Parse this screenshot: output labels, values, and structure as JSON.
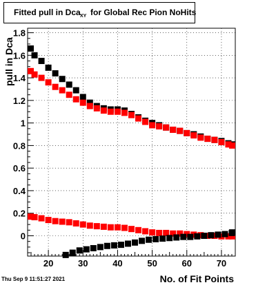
{
  "chart_data": {
    "type": "scatter",
    "title": "Fitted pull in Dca",
    "title_subscript": "XY",
    "title_rest": "for Global Rec Pion NoHits",
    "xlabel": "No. of Fit Points",
    "ylabel": "pull in Dca",
    "xlim": [
      14,
      74
    ],
    "ylim": [
      -0.18,
      1.84
    ],
    "xticks": [
      20,
      30,
      40,
      50,
      60,
      70
    ],
    "yticks": [
      0,
      0.2,
      0.4,
      0.6,
      0.8,
      1,
      1.2,
      1.4,
      1.6,
      1.8
    ],
    "grid": true,
    "series": [
      {
        "color": "#000000",
        "marker": "square",
        "x": [
          14,
          16,
          18,
          20,
          22,
          24,
          26,
          28,
          30,
          32,
          34,
          36,
          38,
          40,
          42,
          44,
          46,
          48,
          50,
          52,
          54,
          56,
          58,
          60,
          62,
          64,
          66,
          68,
          70,
          72,
          74
        ],
        "y": [
          1.66,
          1.6,
          1.55,
          1.49,
          1.44,
          1.39,
          1.34,
          1.29,
          1.23,
          1.18,
          1.15,
          1.13,
          1.12,
          1.12,
          1.11,
          1.08,
          1.05,
          1.02,
          1.0,
          0.98,
          0.96,
          0.94,
          0.93,
          0.91,
          0.9,
          0.88,
          0.86,
          0.85,
          0.84,
          0.82,
          0.81
        ]
      },
      {
        "color": "#ff0000",
        "marker": "square",
        "x": [
          14,
          16,
          18,
          20,
          22,
          24,
          26,
          28,
          30,
          32,
          34,
          36,
          38,
          40,
          42,
          44,
          46,
          48,
          50,
          52,
          54,
          56,
          58,
          60,
          62,
          64,
          66,
          68,
          70,
          72,
          74
        ],
        "y": [
          1.46,
          1.43,
          1.4,
          1.36,
          1.32,
          1.29,
          1.25,
          1.21,
          1.18,
          1.15,
          1.13,
          1.11,
          1.1,
          1.1,
          1.09,
          1.07,
          1.04,
          1.01,
          0.98,
          0.97,
          0.96,
          0.94,
          0.93,
          0.91,
          0.89,
          0.87,
          0.86,
          0.85,
          0.83,
          0.81,
          0.8
        ]
      },
      {
        "color": "#ff0000",
        "marker": "square",
        "x": [
          14,
          16,
          18,
          20,
          22,
          24,
          26,
          28,
          30,
          32,
          34,
          36,
          38,
          40,
          42,
          44,
          46,
          48,
          50,
          52,
          54,
          56,
          58,
          60,
          62,
          64,
          66,
          68,
          70,
          72,
          74
        ],
        "y": [
          0.17,
          0.165,
          0.155,
          0.14,
          0.13,
          0.125,
          0.12,
          0.11,
          0.1,
          0.09,
          0.085,
          0.08,
          0.075,
          0.075,
          0.07,
          0.06,
          0.05,
          0.04,
          0.03,
          0.025,
          0.025,
          0.02,
          0.02,
          0.015,
          0.01,
          0.005,
          0.0,
          0.0,
          -0.005,
          -0.005,
          -0.005
        ]
      },
      {
        "color": "#000000",
        "marker": "square",
        "x": [
          25,
          27,
          29,
          31,
          33,
          35,
          37,
          39,
          41,
          43,
          45,
          47,
          49,
          51,
          53,
          55,
          57,
          59,
          61,
          63,
          65,
          67,
          69,
          71,
          73,
          74
        ],
        "y": [
          -0.17,
          -0.15,
          -0.13,
          -0.12,
          -0.11,
          -0.1,
          -0.09,
          -0.085,
          -0.08,
          -0.07,
          -0.06,
          -0.045,
          -0.035,
          -0.03,
          -0.025,
          -0.02,
          -0.015,
          -0.01,
          -0.01,
          -0.005,
          0.0,
          0.005,
          0.01,
          0.015,
          0.025,
          0.03
        ]
      }
    ]
  },
  "footer": {
    "date": "Thu Sep  9 11:51:27 2021"
  }
}
